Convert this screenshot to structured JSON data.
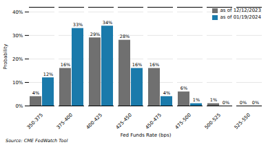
{
  "chart_data": {
    "type": "bar",
    "categories": [
      "350-375",
      "375-400",
      "400-425",
      "425-450",
      "450-475",
      "475-500",
      "500-525",
      "525-550"
    ],
    "series": [
      {
        "name": "as of 12/12/2023",
        "color": "#707070",
        "values": [
          4,
          16,
          29,
          28,
          16,
          6,
          1,
          0
        ],
        "value_labels": [
          "4%",
          "16%",
          "29%",
          "28%",
          "16%",
          "6%",
          "1%",
          "0%"
        ]
      },
      {
        "name": "as of 01/19/2024",
        "color": "#1a7aab",
        "values": [
          12,
          33,
          34,
          16,
          4,
          1,
          0,
          0
        ],
        "value_labels": [
          "12%",
          "33%",
          "34%",
          "16%",
          "4%",
          "1%",
          "0%",
          "0%"
        ]
      }
    ],
    "xlabel": "Fed Funds Rate (bps)",
    "ylabel": "Probability",
    "caption": "Source: CME FedWatch Tool",
    "ylim": [
      0,
      42
    ],
    "yticks": [
      {
        "value": 0,
        "label": "0%"
      },
      {
        "value": 10,
        "label": "10%"
      },
      {
        "value": 20,
        "label": "20%"
      },
      {
        "value": 30,
        "label": "30%"
      },
      {
        "value": 40,
        "label": "40%"
      }
    ],
    "grid": true,
    "data_labels": true,
    "legend": "upper right"
  }
}
